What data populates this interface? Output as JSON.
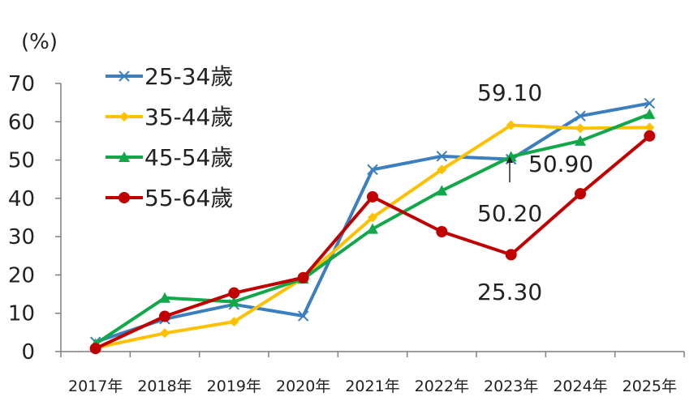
{
  "chart_data": {
    "type": "line",
    "y_unit_label": "(%)",
    "ylim": [
      0,
      70
    ],
    "yticks": [
      0,
      10,
      20,
      30,
      40,
      50,
      60,
      70
    ],
    "categories": [
      "2017年",
      "2018年",
      "2019年",
      "2020年",
      "2021年",
      "2022年",
      "2023年",
      "2024年",
      "2025年"
    ],
    "legend_position": "top-left",
    "grid": false,
    "series": [
      {
        "name": "25-34歲",
        "color": "#3b7fbf",
        "marker": "x",
        "values": [
          2.5,
          8.5,
          12.3,
          9.3,
          47.5,
          51.0,
          50.2,
          61.5,
          64.8
        ]
      },
      {
        "name": "35-44歲",
        "color": "#ffc000",
        "marker": "diamond",
        "values": [
          1.0,
          4.8,
          7.8,
          19.2,
          35.0,
          47.5,
          59.1,
          58.3,
          58.5
        ]
      },
      {
        "name": "45-54歲",
        "color": "#12a84a",
        "marker": "triangle",
        "values": [
          2.0,
          14.0,
          13.0,
          19.0,
          32.0,
          42.0,
          50.9,
          55.0,
          62.0
        ]
      },
      {
        "name": "55-64歲",
        "color": "#c00000",
        "marker": "circle",
        "values": [
          0.8,
          9.2,
          15.3,
          19.3,
          40.4,
          31.3,
          25.3,
          41.2,
          56.3
        ]
      }
    ],
    "annotations": [
      {
        "text": "59.10",
        "series": "35-44歲",
        "category": "2023年"
      },
      {
        "text": "50.90",
        "series": "45-54歲",
        "category": "2023年"
      },
      {
        "text": "50.20",
        "series": "25-34歲",
        "category": "2023年"
      },
      {
        "text": "25.30",
        "series": "55-64歲",
        "category": "2023年"
      }
    ]
  }
}
